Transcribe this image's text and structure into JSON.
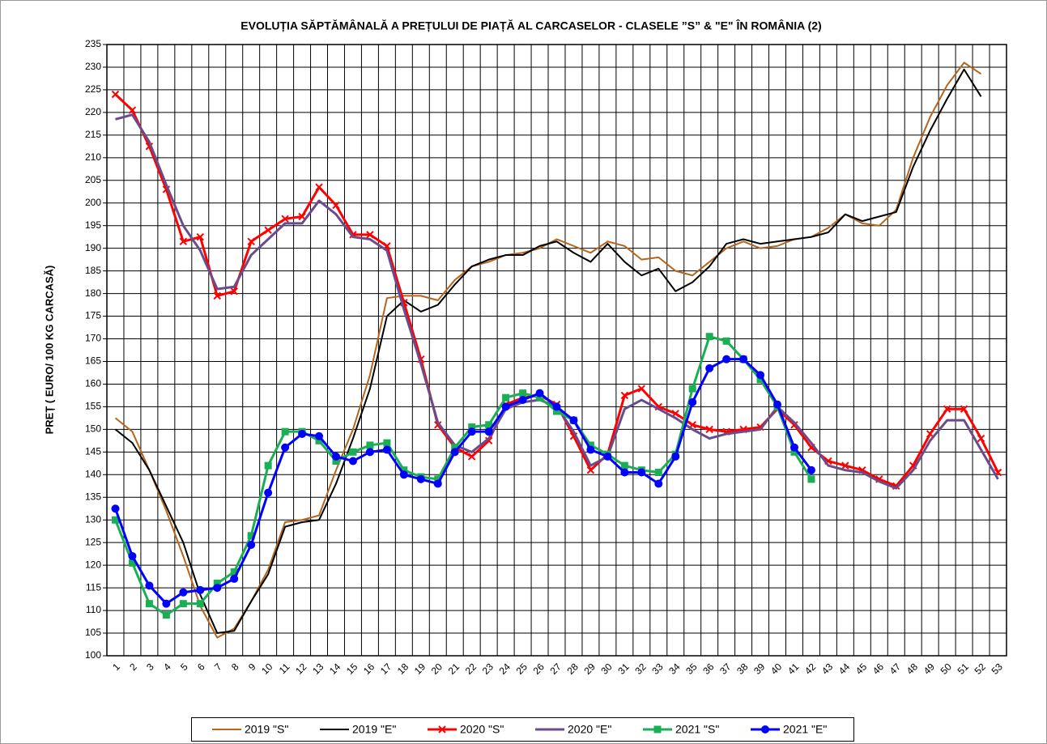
{
  "chart_data": {
    "type": "line",
    "title": "EVOLUȚIA SĂPTĂMÂNALĂ A PREȚULUI  DE PIAȚĂ  AL CARCASELOR  - CLASELE ”S” & \"E\"  ÎN ROMÂNIA (2)",
    "y_label": "PREȚ ( EURO/ 100 KG CARCASĂ)",
    "categories": [
      "1",
      "2",
      "3",
      "4",
      "5",
      "6",
      "7",
      "8",
      "9",
      "10",
      "11",
      "12",
      "13",
      "14",
      "15",
      "16",
      "17",
      "18",
      "19",
      "20",
      "21",
      "22",
      "23",
      "24",
      "25",
      "26",
      "27",
      "28",
      "29",
      "30",
      "31",
      "32",
      "33",
      "34",
      "35",
      "36",
      "37",
      "38",
      "39",
      "40",
      "41",
      "42",
      "43",
      "44",
      "45",
      "46",
      "47",
      "48",
      "49",
      "50",
      "51",
      "52",
      "53"
    ],
    "ylim": [
      100,
      235
    ],
    "yticks": [
      100,
      105,
      110,
      115,
      120,
      125,
      130,
      135,
      140,
      145,
      150,
      155,
      160,
      165,
      170,
      175,
      180,
      185,
      190,
      195,
      200,
      205,
      210,
      215,
      220,
      225,
      230,
      235
    ],
    "grid": true,
    "legend": "bottom",
    "series": [
      {
        "name": "2019 \"S\"",
        "color": "#b5651d",
        "marker": "none",
        "line_width": 2,
        "values": [
          152.5,
          149.5,
          141,
          132,
          122,
          111,
          104,
          106,
          112,
          119,
          129.5,
          130,
          131,
          141,
          150,
          162,
          179,
          179.5,
          179.5,
          178.5,
          183,
          186,
          187,
          188.5,
          189,
          190,
          192,
          190.5,
          189,
          191.5,
          190.5,
          187.5,
          188,
          185,
          184,
          187,
          190,
          191.5,
          190,
          190.5,
          192,
          192.5,
          194.5,
          197.5,
          195.5,
          195,
          198.5,
          210,
          219,
          226,
          231,
          228.5,
          null
        ]
      },
      {
        "name": "2019 \"E\"",
        "color": "#000000",
        "marker": "none",
        "line_width": 2,
        "values": [
          150,
          147,
          141,
          133,
          125,
          113.5,
          105,
          105.5,
          112,
          118,
          128.5,
          129.5,
          130,
          138,
          148,
          159,
          175,
          178.5,
          176,
          177.5,
          182,
          186,
          187.5,
          188.5,
          188.5,
          190.5,
          191.5,
          189,
          187,
          191,
          187,
          184,
          185.5,
          180.5,
          182.5,
          186,
          191,
          192,
          191,
          191.5,
          192,
          192.5,
          193.5,
          197.5,
          196,
          197,
          198,
          208,
          216,
          223,
          229.5,
          223.5,
          null
        ]
      },
      {
        "name": "2020 \"S\"",
        "color": "#ff0000",
        "marker": "x",
        "line_width": 3,
        "values": [
          224,
          220.5,
          212.5,
          203,
          191.5,
          192.5,
          179.5,
          180.5,
          191.5,
          194,
          196.5,
          197,
          203.5,
          199.5,
          193,
          193,
          190.5,
          178,
          165.5,
          151,
          146,
          144,
          147.5,
          155.5,
          157,
          157.5,
          155.5,
          148.5,
          141,
          144.5,
          157.5,
          159,
          155,
          153.5,
          151,
          150,
          149.5,
          150,
          150.5,
          154.5,
          151,
          146,
          143,
          142,
          141,
          139,
          137.5,
          142,
          149,
          154.5,
          154.5,
          148,
          140.5
        ]
      },
      {
        "name": "2020 \"E\"",
        "color": "#6a4c8c",
        "marker": "none",
        "line_width": 3,
        "values": [
          218.5,
          219.5,
          213.5,
          204,
          195,
          189.5,
          181,
          181.5,
          188.5,
          192,
          195.5,
          195.5,
          200.5,
          197.5,
          192.5,
          192,
          189.5,
          176.5,
          164.5,
          151.5,
          146.5,
          145,
          148,
          154.5,
          156,
          156.5,
          155,
          149.5,
          142,
          144,
          154.5,
          156.5,
          154.5,
          152.5,
          150,
          148,
          149,
          149.5,
          150,
          155,
          151.5,
          147,
          142,
          141,
          140.5,
          138.5,
          137,
          141,
          147.5,
          152,
          152,
          145.5,
          139
        ]
      },
      {
        "name": "2021 \"S\"",
        "color": "#1aaf54",
        "marker": "square",
        "line_width": 3,
        "values": [
          130,
          120.5,
          111.5,
          109,
          111.5,
          111.5,
          116,
          118.5,
          126.5,
          142,
          149.5,
          149.5,
          147.5,
          143,
          145,
          146.5,
          147,
          141,
          139.5,
          139,
          146,
          150.5,
          151,
          157,
          158,
          157,
          154,
          152,
          146.5,
          144.5,
          142,
          141,
          140.5,
          144.5,
          159,
          170.5,
          169.5,
          165.5,
          161,
          155,
          145,
          139,
          null,
          null,
          null,
          null,
          null,
          null,
          null,
          null,
          null,
          null,
          null
        ]
      },
      {
        "name": "2021 \"E\"",
        "color": "#0000ff",
        "marker": "circle",
        "line_width": 3,
        "values": [
          132.5,
          122,
          115.5,
          111.5,
          114,
          114.5,
          115,
          117,
          124.5,
          136,
          146,
          149,
          148.5,
          144,
          143,
          145,
          145.5,
          140,
          139,
          138,
          145,
          149.5,
          149.5,
          155,
          156.5,
          158,
          155,
          152,
          145.5,
          144,
          140.5,
          140.5,
          138,
          144,
          156,
          163.5,
          165.5,
          165.5,
          162,
          155.5,
          146,
          141,
          null,
          null,
          null,
          null,
          null,
          null,
          null,
          null,
          null,
          null,
          null
        ]
      }
    ]
  }
}
